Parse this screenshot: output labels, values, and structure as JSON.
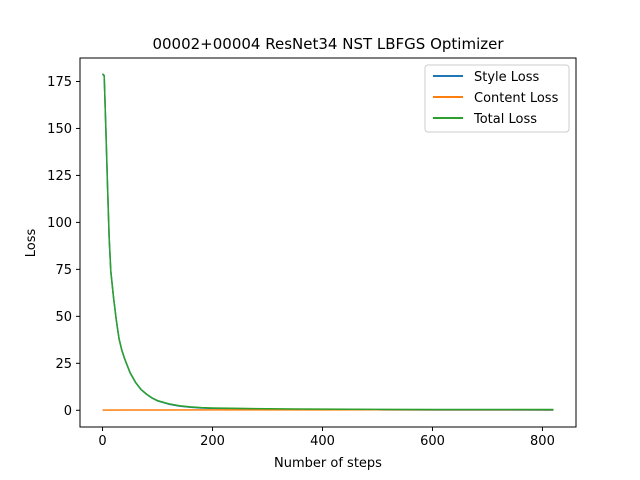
{
  "chart_data": {
    "type": "line",
    "title": "00002+00004 ResNet34 NST LBFGS Optimizer",
    "xlabel": "Number of steps",
    "ylabel": "Loss",
    "xlim": [
      -41,
      861
    ],
    "ylim": [
      -8.9,
      187.5
    ],
    "xticks": [
      0,
      200,
      400,
      600,
      800
    ],
    "yticks": [
      0,
      25,
      50,
      75,
      100,
      125,
      150,
      175
    ],
    "legend_position": "top-right",
    "grid": false,
    "series": [
      {
        "name": "Style Loss",
        "color": "#1f77b4",
        "x": [
          0,
          3,
          6,
          9,
          12,
          15,
          20,
          25,
          30,
          35,
          40,
          50,
          60,
          70,
          80,
          90,
          100,
          120,
          140,
          160,
          180,
          200,
          250,
          300,
          350,
          400,
          500,
          600,
          700,
          820
        ],
        "y": [
          179,
          178,
          150,
          120,
          92,
          74,
          60,
          48,
          38,
          32,
          27.5,
          20,
          14.8,
          11,
          8.5,
          6.5,
          5,
          3.3,
          2.2,
          1.6,
          1.2,
          1.0,
          0.8,
          0.6,
          0.45,
          0.35,
          0.25,
          0.18,
          0.14,
          0.1
        ]
      },
      {
        "name": "Content Loss",
        "color": "#ff7f0e",
        "x": [
          0,
          100,
          200,
          300,
          400,
          500,
          600,
          700,
          820
        ],
        "y": [
          0.1,
          0.15,
          0.2,
          0.22,
          0.24,
          0.25,
          0.26,
          0.27,
          0.28
        ]
      },
      {
        "name": "Total Loss",
        "color": "#2ca02c",
        "x": [
          0,
          3,
          6,
          9,
          12,
          15,
          20,
          25,
          30,
          35,
          40,
          50,
          60,
          70,
          80,
          90,
          100,
          120,
          140,
          160,
          180,
          200,
          250,
          300,
          350,
          400,
          500,
          600,
          700,
          820
        ],
        "y": [
          179.1,
          178.1,
          150.1,
          120.1,
          92.1,
          74.1,
          60.1,
          48.1,
          38.1,
          32.1,
          27.6,
          20.1,
          14.9,
          11.1,
          8.6,
          6.6,
          5.15,
          3.5,
          2.4,
          1.8,
          1.4,
          1.2,
          1.0,
          0.82,
          0.68,
          0.59,
          0.5,
          0.44,
          0.41,
          0.38
        ]
      }
    ]
  }
}
